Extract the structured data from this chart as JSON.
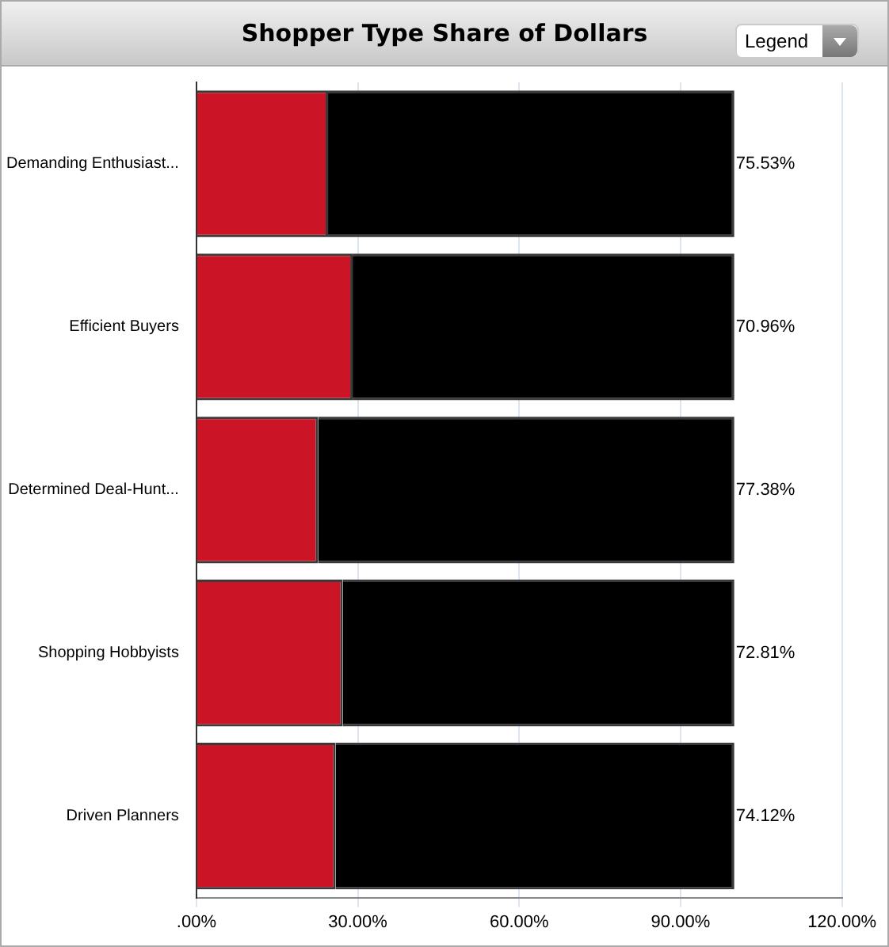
{
  "chart_data": {
    "type": "bar",
    "title": "Shopper Type Share of Dollars",
    "orientation": "horizontal",
    "stacked": true,
    "categories": [
      "Demanding Enthusiast...",
      "Efficient Buyers",
      "Determined Deal-Hunt...",
      "Shopping Hobbyists",
      "Driven Planners"
    ],
    "series": [
      {
        "color": "#cc1427",
        "values": [
          24.47,
          29.04,
          22.62,
          27.19,
          25.88
        ]
      },
      {
        "color": "#000000",
        "values": [
          75.53,
          70.96,
          77.38,
          72.81,
          74.12
        ],
        "value_labels": [
          "75.53%",
          "70.96%",
          "77.38%",
          "72.81%",
          "74.12%"
        ]
      }
    ],
    "xlim": [
      0,
      120
    ],
    "xticks": [
      {
        "value": 0,
        "label": ".00%"
      },
      {
        "value": 30,
        "label": "30.00%"
      },
      {
        "value": 60,
        "label": "60.00%"
      },
      {
        "value": 90,
        "label": "90.00%"
      },
      {
        "value": 120,
        "label": "120.00%"
      }
    ],
    "grid": "x",
    "annotations": [
      "Legend"
    ]
  }
}
